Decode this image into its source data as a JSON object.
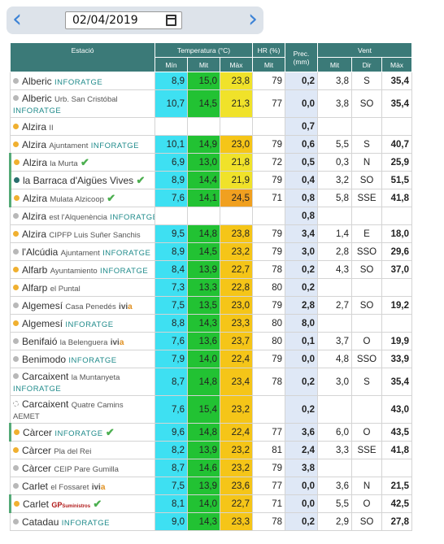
{
  "nav": {
    "prev_icon": "chevron-left",
    "next_icon": "chevron-right",
    "date": "02/04/2019",
    "calendar_icon": "calendar-icon"
  },
  "header": {
    "estacio": "Estació",
    "temperatura": "Temperatura (°C)",
    "hr": "HR (%)",
    "prec": "Prec.",
    "prec_unit": "(mm)",
    "vent": "Vent",
    "min": "Mín",
    "mit": "Mit",
    "max": "Màx",
    "hr_mit": "Mit",
    "vent_mit": "Mit",
    "vent_dir": "Dir",
    "vent_max": "Màx"
  },
  "colors": {
    "gray_dot": "#b8b8b8",
    "orange_dot": "#f0b030",
    "teal_dot": "#2a6e6e",
    "dashed_dot": "#cccccc",
    "min": "#3ee0f2",
    "mit": "#22c233",
    "max_yellow": "#f0e22a",
    "max_gold": "#f5c518",
    "max_orange": "#f0a020",
    "prec": "#dfe8f6"
  },
  "rows": [
    {
      "dot": "gray",
      "name": "Alberic",
      "sub": "",
      "tag": "INFORATGE",
      "ivia": false,
      "gp": false,
      "check": false,
      "min": "8,9",
      "mit": "15,0",
      "max": "23,8",
      "hr": "79",
      "prec": "0,2",
      "vmit": "3,8",
      "vdir": "S",
      "vmax": "35,4",
      "maxc": "yellow"
    },
    {
      "dot": "gray",
      "name": "Alberic",
      "sub": "Urb. San Cristóbal",
      "tag": "INFORATGE",
      "ivia": false,
      "gp": false,
      "check": false,
      "min": "10,7",
      "mit": "14,5",
      "max": "21,3",
      "hr": "77",
      "prec": "0,0",
      "vmit": "3,8",
      "vdir": "SO",
      "vmax": "35,4",
      "maxc": "yellow",
      "tall": true
    },
    {
      "dot": "orange",
      "name": "Alzira",
      "sub": "II",
      "tag": "",
      "ivia": false,
      "gp": false,
      "check": false,
      "min": "",
      "mit": "",
      "max": "",
      "hr": "",
      "prec": "0,7",
      "vmit": "",
      "vdir": "",
      "vmax": ""
    },
    {
      "dot": "orange",
      "name": "Alzira",
      "sub": "Ajuntament",
      "tag": "INFORATGE",
      "ivia": false,
      "gp": false,
      "check": false,
      "min": "10,1",
      "mit": "14,9",
      "max": "23,0",
      "hr": "79",
      "prec": "0,6",
      "vmit": "5,5",
      "vdir": "S",
      "vmax": "40,7",
      "maxc": "gold"
    },
    {
      "dot": "orange",
      "name": "Alzira",
      "sub": "la Murta",
      "tag": "",
      "ivia": false,
      "gp": false,
      "check": true,
      "min": "6,9",
      "mit": "13,0",
      "max": "21,8",
      "hr": "72",
      "prec": "0,5",
      "vmit": "0,3",
      "vdir": "N",
      "vmax": "25,9",
      "maxc": "yellow",
      "bar": true
    },
    {
      "dot": "teal",
      "name": "la Barraca d'Aigües Vives",
      "sub": "",
      "tag": "",
      "ivia": false,
      "gp": false,
      "check": true,
      "min": "8,9",
      "mit": "14,4",
      "max": "21,9",
      "hr": "79",
      "prec": "0,4",
      "vmit": "3,2",
      "vdir": "SO",
      "vmax": "51,5",
      "maxc": "yellow",
      "bar": true
    },
    {
      "dot": "orange",
      "name": "Alzira",
      "sub": "Mulata Alzicoop",
      "tag": "",
      "ivia": false,
      "gp": false,
      "check": true,
      "min": "7,6",
      "mit": "14,1",
      "max": "24,5",
      "hr": "71",
      "prec": "0,8",
      "vmit": "5,8",
      "vdir": "SSE",
      "vmax": "41,8",
      "maxc": "orange",
      "bar": true
    },
    {
      "dot": "gray",
      "name": "Alzira",
      "sub": "est l'Alquenència",
      "tag": "INFORATGE",
      "ivia": false,
      "gp": false,
      "check": false,
      "min": "",
      "mit": "",
      "max": "",
      "hr": "",
      "prec": "0,8",
      "vmit": "",
      "vdir": "",
      "vmax": ""
    },
    {
      "dot": "orange",
      "name": "Alzira",
      "sub": "CIPFP Luis Suñer Sanchis",
      "tag": "",
      "ivia": false,
      "gp": false,
      "check": false,
      "min": "9,5",
      "mit": "14,8",
      "max": "23,8",
      "hr": "79",
      "prec": "3,4",
      "vmit": "1,4",
      "vdir": "E",
      "vmax": "18,0",
      "maxc": "gold"
    },
    {
      "dot": "gray",
      "name": "l'Alcúdia",
      "sub": "Ajuntament",
      "tag": "INFORATGE",
      "ivia": false,
      "gp": false,
      "check": false,
      "min": "8,9",
      "mit": "14,5",
      "max": "23,2",
      "hr": "79",
      "prec": "3,0",
      "vmit": "2,8",
      "vdir": "SSO",
      "vmax": "29,6",
      "maxc": "gold"
    },
    {
      "dot": "orange",
      "name": "Alfarb",
      "sub": "Ayuntamiento",
      "tag": "INFORATGE",
      "ivia": false,
      "gp": false,
      "check": false,
      "min": "8,4",
      "mit": "13,9",
      "max": "22,7",
      "hr": "78",
      "prec": "0,2",
      "vmit": "4,3",
      "vdir": "SO",
      "vmax": "37,0",
      "maxc": "gold"
    },
    {
      "dot": "orange",
      "name": "Alfarp",
      "sub": "el Puntal",
      "tag": "",
      "ivia": false,
      "gp": false,
      "check": false,
      "min": "7,3",
      "mit": "13,3",
      "max": "22,8",
      "hr": "80",
      "prec": "0,2",
      "vmit": "",
      "vdir": "",
      "vmax": "",
      "maxc": "gold"
    },
    {
      "dot": "gray",
      "name": "Algemesí",
      "sub": "Casa Penedés",
      "tag": "",
      "ivia": true,
      "gp": false,
      "check": false,
      "min": "7,5",
      "mit": "13,5",
      "max": "23,0",
      "hr": "79",
      "prec": "2,8",
      "vmit": "2,7",
      "vdir": "SO",
      "vmax": "19,2",
      "maxc": "gold"
    },
    {
      "dot": "orange",
      "name": "Algemesí",
      "sub": "",
      "tag": "INFORATGE",
      "ivia": false,
      "gp": false,
      "check": false,
      "min": "8,8",
      "mit": "14,3",
      "max": "23,3",
      "hr": "80",
      "prec": "8,0",
      "vmit": "",
      "vdir": "",
      "vmax": "",
      "maxc": "gold"
    },
    {
      "dot": "gray",
      "name": "Benifaió",
      "sub": "la Belenguera",
      "tag": "",
      "ivia": true,
      "gp": false,
      "check": false,
      "min": "7,6",
      "mit": "13,6",
      "max": "23,7",
      "hr": "80",
      "prec": "0,1",
      "vmit": "3,7",
      "vdir": "O",
      "vmax": "19,9",
      "maxc": "gold"
    },
    {
      "dot": "gray",
      "name": "Benimodo",
      "sub": "",
      "tag": "INFORATGE",
      "ivia": false,
      "gp": false,
      "check": false,
      "min": "7,9",
      "mit": "14,0",
      "max": "22,4",
      "hr": "79",
      "prec": "0,0",
      "vmit": "4,8",
      "vdir": "SSO",
      "vmax": "33,9",
      "maxc": "gold"
    },
    {
      "dot": "gray",
      "name": "Carcaixent",
      "sub": "la Muntanyeta",
      "tag": "INFORATGE",
      "ivia": false,
      "gp": false,
      "check": false,
      "min": "8,7",
      "mit": "14,8",
      "max": "23,4",
      "hr": "78",
      "prec": "0,2",
      "vmit": "3,0",
      "vdir": "S",
      "vmax": "35,4",
      "maxc": "gold",
      "tall": true
    },
    {
      "dot": "dashed",
      "name": "Carcaixent",
      "sub": "Quatre Camins",
      "line2": "AEMET",
      "tag": "",
      "ivia": false,
      "gp": false,
      "check": false,
      "min": "7,6",
      "mit": "15,4",
      "max": "23,2",
      "hr": "",
      "prec": "0,2",
      "vmit": "",
      "vdir": "",
      "vmax": "43,0",
      "maxc": "gold",
      "tall": true
    },
    {
      "dot": "orange",
      "name": "Càrcer",
      "sub": "",
      "tag": "INFORATGE",
      "ivia": false,
      "gp": false,
      "check": true,
      "min": "9,6",
      "mit": "14,8",
      "max": "22,4",
      "hr": "77",
      "prec": "3,6",
      "vmit": "6,0",
      "vdir": "O",
      "vmax": "43,5",
      "maxc": "gold",
      "bar": true
    },
    {
      "dot": "orange",
      "name": "Càrcer",
      "sub": "Pla del Rei",
      "tag": "",
      "ivia": false,
      "gp": false,
      "check": false,
      "min": "8,2",
      "mit": "13,9",
      "max": "23,2",
      "hr": "81",
      "prec": "2,4",
      "vmit": "3,3",
      "vdir": "SSE",
      "vmax": "41,8",
      "maxc": "gold"
    },
    {
      "dot": "gray",
      "name": "Càrcer",
      "sub": "CEIP Pare Gumilla",
      "tag": "",
      "ivia": false,
      "gp": false,
      "check": false,
      "min": "8,7",
      "mit": "14,6",
      "max": "23,2",
      "hr": "79",
      "prec": "3,8",
      "vmit": "",
      "vdir": "",
      "vmax": "",
      "maxc": "gold"
    },
    {
      "dot": "gray",
      "name": "Carlet",
      "sub": "el Fossaret",
      "tag": "",
      "ivia": true,
      "gp": false,
      "check": false,
      "min": "7,5",
      "mit": "13,9",
      "max": "23,6",
      "hr": "77",
      "prec": "0,0",
      "vmit": "3,6",
      "vdir": "N",
      "vmax": "21,5",
      "maxc": "gold"
    },
    {
      "dot": "orange",
      "name": "Carlet",
      "sub": "",
      "tag": "",
      "ivia": false,
      "gp": true,
      "check": true,
      "min": "8,1",
      "mit": "14,0",
      "max": "22,7",
      "hr": "71",
      "prec": "0,0",
      "vmit": "5,5",
      "vdir": "O",
      "vmax": "42,5",
      "maxc": "gold",
      "bar": true
    },
    {
      "dot": "gray",
      "name": "Catadau",
      "sub": "",
      "tag": "INFORATGE",
      "ivia": false,
      "gp": false,
      "check": false,
      "min": "9,0",
      "mit": "14,3",
      "max": "23,3",
      "hr": "78",
      "prec": "0,2",
      "vmit": "2,9",
      "vdir": "SO",
      "vmax": "27,8",
      "maxc": "gold"
    }
  ],
  "ivia_label": {
    "a": "ivi",
    "b": "a"
  },
  "gp_label": {
    "a": "GP",
    "b": "Suministros"
  }
}
